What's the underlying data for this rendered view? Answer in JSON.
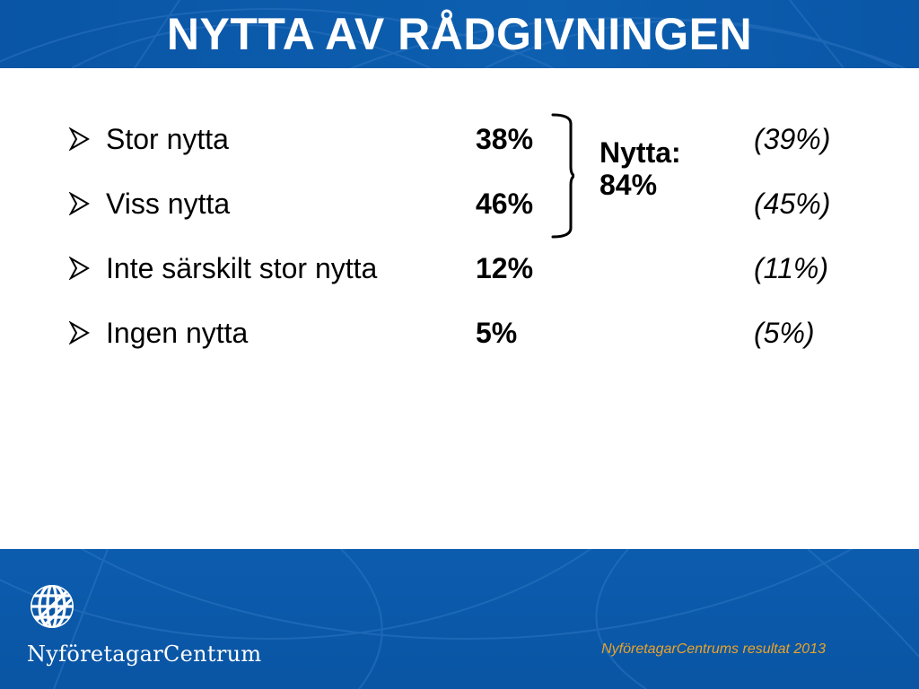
{
  "slide": {
    "title": "NYTTA AV RÅDGIVNINGEN",
    "items": [
      {
        "label": "Stor nytta",
        "value": "38%",
        "previous": "(39%)"
      },
      {
        "label": "Viss nytta",
        "value": "46%",
        "previous": "(45%)"
      },
      {
        "label": "Inte särskilt stor nytta",
        "value": "12%",
        "previous": "(11%)"
      },
      {
        "label": "Ingen nytta",
        "value": "5%",
        "previous": "(5%)"
      }
    ],
    "summary_label": "Nytta:",
    "summary_value": "84%"
  },
  "footer": {
    "logo_text": "NyföretagarCentrum",
    "caption": "NyföretagarCentrums resultat 2013"
  },
  "colors": {
    "brand_blue": "#0a55a5",
    "caption_orange": "#e8a32a"
  },
  "icons": {
    "bullet": "arrowhead-bullet-icon",
    "logo": "globe-logo-icon"
  }
}
